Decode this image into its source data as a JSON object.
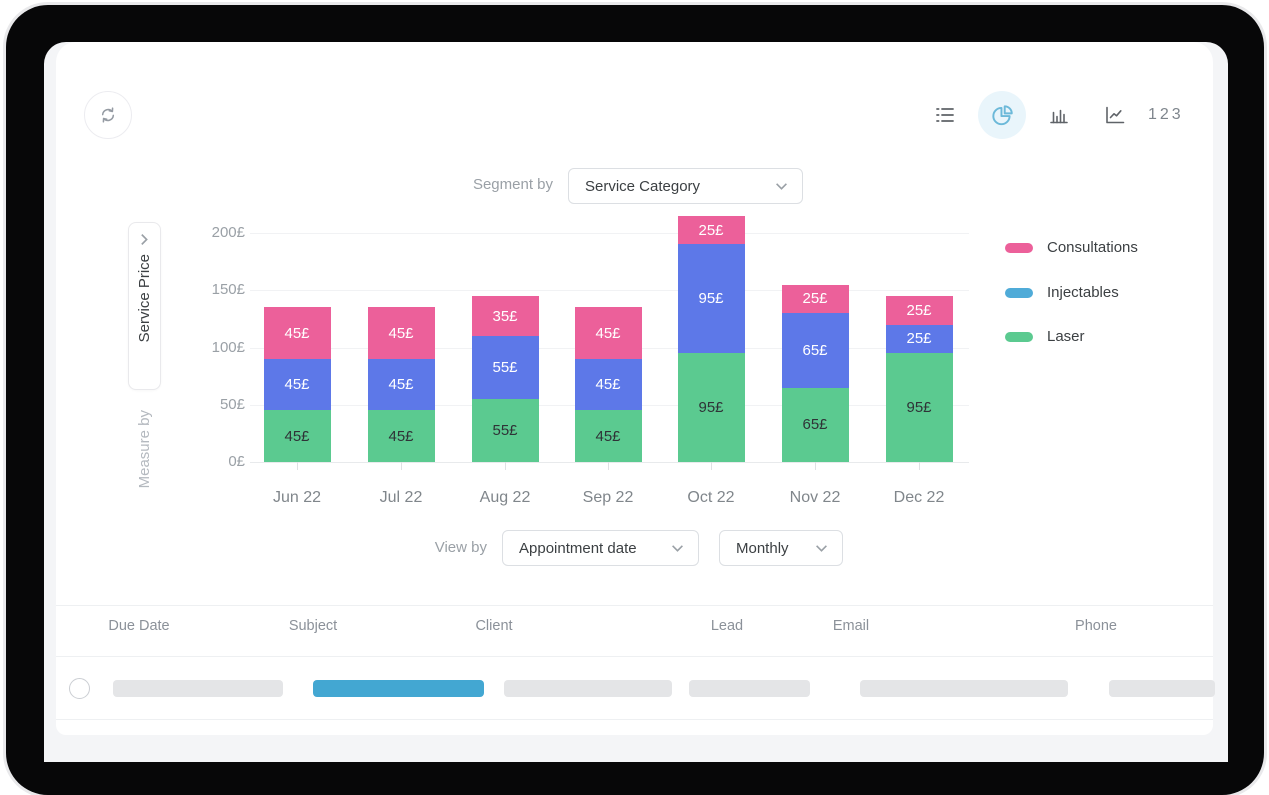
{
  "toolbar": {
    "views": [
      {
        "id": "list",
        "icon": "list-icon"
      },
      {
        "id": "pie",
        "icon": "pie-chart-icon",
        "active": true
      },
      {
        "id": "bar",
        "icon": "bar-chart-icon"
      },
      {
        "id": "line",
        "icon": "line-chart-icon"
      },
      {
        "id": "numeric",
        "label": "123"
      }
    ]
  },
  "controls": {
    "segment_by_label": "Segment by",
    "segment_by_value": "Service Category",
    "view_by_label": "View by",
    "view_by_value": "Appointment date",
    "granularity_value": "Monthly"
  },
  "measure_panel": {
    "selected_measure": "Service Price",
    "label": "Measure by"
  },
  "chart_data": {
    "type": "bar",
    "stacked": true,
    "categories": [
      "Jun 22",
      "Jul 22",
      "Aug 22",
      "Sep 22",
      "Oct 22",
      "Nov 22",
      "Dec 22"
    ],
    "series": [
      {
        "name": "Consultations",
        "color": "#ec609a",
        "legend_color": "#ec609a",
        "label_color": "#ffffff",
        "values": [
          45,
          45,
          35,
          45,
          25,
          25,
          25
        ]
      },
      {
        "name": "Injectables",
        "color": "#5d78e8",
        "legend_color": "#4fabd8",
        "label_color": "#ffffff",
        "values": [
          45,
          45,
          55,
          45,
          95,
          65,
          25
        ]
      },
      {
        "name": "Laser",
        "color": "#5bca90",
        "legend_color": "#5bca90",
        "label_color": "#2f3337",
        "values": [
          45,
          45,
          55,
          45,
          95,
          65,
          95
        ]
      }
    ],
    "value_suffix": "£",
    "y_ticks": [
      "200£",
      "150£",
      "100£",
      "50£",
      "0£"
    ],
    "ylim": [
      0,
      200
    ],
    "grid": "horizontal",
    "legend_position": "right"
  },
  "table": {
    "columns": [
      "Due Date",
      "Subject",
      "Client",
      "Lead",
      "Email",
      "Phone"
    ],
    "skeleton_row": {
      "selected": false,
      "cells": [
        "gray",
        "accent",
        "gray",
        "gray",
        "gray",
        "gray"
      ]
    }
  },
  "colors": {
    "accent_blue": "#43a7d2",
    "active_icon_bg": "#e9f5fb",
    "active_icon": "#6cb9d9",
    "skeleton_gray": "#e4e5e7"
  }
}
